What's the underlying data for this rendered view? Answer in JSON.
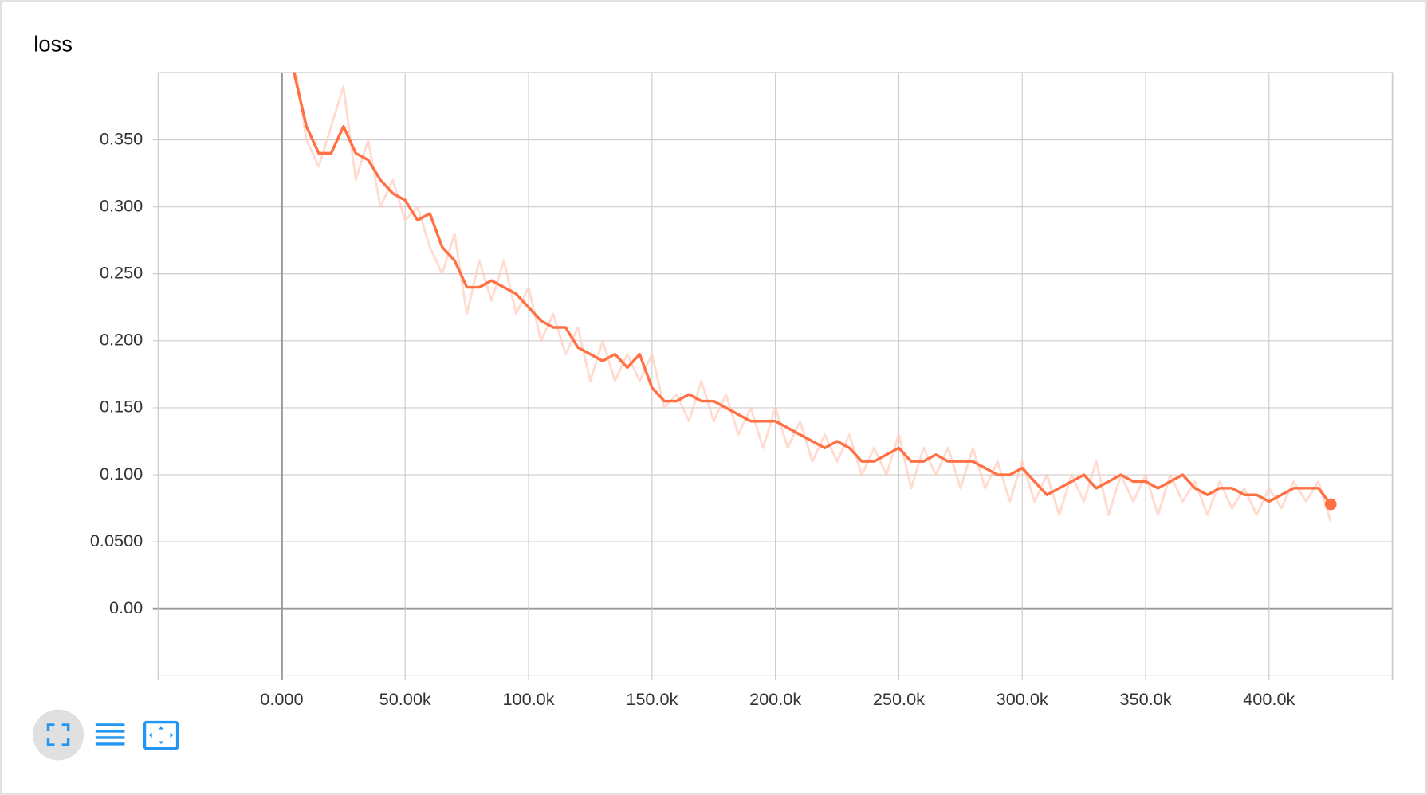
{
  "chart_data": {
    "type": "line",
    "title": "loss",
    "x": [
      5000,
      10000,
      15000,
      20000,
      25000,
      30000,
      35000,
      40000,
      45000,
      50000,
      55000,
      60000,
      65000,
      70000,
      75000,
      80000,
      85000,
      90000,
      95000,
      100000,
      105000,
      110000,
      115000,
      120000,
      125000,
      130000,
      135000,
      140000,
      145000,
      150000,
      155000,
      160000,
      165000,
      170000,
      175000,
      180000,
      185000,
      190000,
      195000,
      200000,
      205000,
      210000,
      215000,
      220000,
      225000,
      230000,
      235000,
      240000,
      245000,
      250000,
      255000,
      260000,
      265000,
      270000,
      275000,
      280000,
      285000,
      290000,
      295000,
      300000,
      305000,
      310000,
      315000,
      320000,
      325000,
      330000,
      335000,
      340000,
      345000,
      350000,
      355000,
      360000,
      365000,
      370000,
      375000,
      380000,
      385000,
      390000,
      395000,
      400000,
      405000,
      410000,
      415000,
      420000,
      425000
    ],
    "series": [
      {
        "color": "#ffccbc",
        "values": [
          0.41,
          0.35,
          0.33,
          0.36,
          0.39,
          0.32,
          0.35,
          0.3,
          0.32,
          0.29,
          0.3,
          0.27,
          0.25,
          0.28,
          0.22,
          0.26,
          0.23,
          0.26,
          0.22,
          0.24,
          0.2,
          0.22,
          0.19,
          0.21,
          0.17,
          0.2,
          0.17,
          0.19,
          0.17,
          0.19,
          0.15,
          0.16,
          0.14,
          0.17,
          0.14,
          0.16,
          0.13,
          0.15,
          0.12,
          0.15,
          0.12,
          0.14,
          0.11,
          0.13,
          0.11,
          0.13,
          0.1,
          0.12,
          0.1,
          0.13,
          0.09,
          0.12,
          0.1,
          0.12,
          0.09,
          0.12,
          0.09,
          0.11,
          0.08,
          0.11,
          0.08,
          0.1,
          0.07,
          0.1,
          0.08,
          0.11,
          0.07,
          0.1,
          0.08,
          0.1,
          0.07,
          0.1,
          0.08,
          0.095,
          0.07,
          0.095,
          0.075,
          0.09,
          0.07,
          0.09,
          0.075,
          0.095,
          0.08,
          0.095,
          0.065
        ]
      },
      {
        "color": "#ff7043",
        "values": [
          0.4,
          0.36,
          0.34,
          0.34,
          0.36,
          0.34,
          0.335,
          0.32,
          0.31,
          0.305,
          0.29,
          0.295,
          0.27,
          0.26,
          0.24,
          0.24,
          0.245,
          0.24,
          0.235,
          0.225,
          0.215,
          0.21,
          0.21,
          0.195,
          0.19,
          0.185,
          0.19,
          0.18,
          0.19,
          0.165,
          0.155,
          0.155,
          0.16,
          0.155,
          0.155,
          0.15,
          0.145,
          0.14,
          0.14,
          0.14,
          0.135,
          0.13,
          0.125,
          0.12,
          0.125,
          0.12,
          0.11,
          0.11,
          0.115,
          0.12,
          0.11,
          0.11,
          0.115,
          0.11,
          0.11,
          0.11,
          0.105,
          0.1,
          0.1,
          0.105,
          0.095,
          0.085,
          0.09,
          0.095,
          0.1,
          0.09,
          0.095,
          0.1,
          0.095,
          0.095,
          0.09,
          0.095,
          0.1,
          0.09,
          0.085,
          0.09,
          0.09,
          0.085,
          0.085,
          0.08,
          0.085,
          0.09,
          0.09,
          0.09,
          0.078
        ]
      }
    ],
    "xlim": [
      -50000,
      450000
    ],
    "ylim": [
      -0.05,
      0.4
    ],
    "xticks": [
      {
        "value": 0,
        "label": "0.000"
      },
      {
        "value": 50000,
        "label": "50.00k"
      },
      {
        "value": 100000,
        "label": "100.0k"
      },
      {
        "value": 150000,
        "label": "150.0k"
      },
      {
        "value": 200000,
        "label": "200.0k"
      },
      {
        "value": 250000,
        "label": "250.0k"
      },
      {
        "value": 300000,
        "label": "300.0k"
      },
      {
        "value": 350000,
        "label": "350.0k"
      },
      {
        "value": 400000,
        "label": "400.0k"
      }
    ],
    "yticks": [
      {
        "value": 0,
        "label": "0.00"
      },
      {
        "value": 0.05,
        "label": "0.0500"
      },
      {
        "value": 0.1,
        "label": "0.100"
      },
      {
        "value": 0.15,
        "label": "0.150"
      },
      {
        "value": 0.2,
        "label": "0.200"
      },
      {
        "value": 0.25,
        "label": "0.250"
      },
      {
        "value": 0.3,
        "label": "0.300"
      },
      {
        "value": 0.35,
        "label": "0.350"
      }
    ],
    "grid": true
  }
}
